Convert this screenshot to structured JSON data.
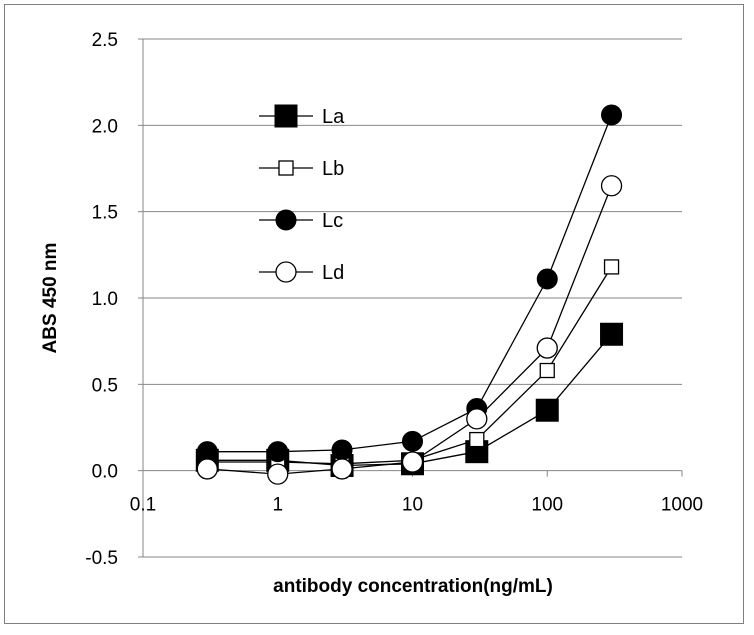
{
  "chart_data": {
    "type": "line",
    "xscale": "log",
    "xlim": [
      0.1,
      1000
    ],
    "ylim": [
      -0.5,
      2.5
    ],
    "xticks": [
      0.1,
      1,
      10,
      100,
      1000
    ],
    "xtick_labels": [
      "0.1",
      "1",
      "10",
      "100",
      "1000"
    ],
    "yticks": [
      -0.5,
      0.0,
      0.5,
      1.0,
      1.5,
      2.0,
      2.5
    ],
    "ytick_labels": [
      "-0.5",
      "0.0",
      "0.5",
      "1.0",
      "1.5",
      "2.0",
      "2.5"
    ],
    "xlabel": "antibody concentration(ng/mL)",
    "ylabel": "ABS 450 nm",
    "grid": "horizontal",
    "legend_position": "upper-left",
    "x": [
      0.3,
      1,
      3,
      10,
      30,
      100,
      300
    ],
    "series": [
      {
        "name": "La",
        "marker": "filled-square",
        "values": [
          0.06,
          0.06,
          0.03,
          0.04,
          0.11,
          0.35,
          0.79
        ]
      },
      {
        "name": "Lb",
        "marker": "open-square",
        "values": [
          0.05,
          0.05,
          0.04,
          0.06,
          0.18,
          0.58,
          1.18
        ]
      },
      {
        "name": "Lc",
        "marker": "filled-circle",
        "values": [
          0.11,
          0.11,
          0.12,
          0.17,
          0.36,
          1.11,
          2.06
        ]
      },
      {
        "name": "Ld",
        "marker": "open-circle",
        "values": [
          0.01,
          -0.02,
          0.01,
          0.05,
          0.3,
          0.71,
          1.65
        ]
      }
    ]
  }
}
